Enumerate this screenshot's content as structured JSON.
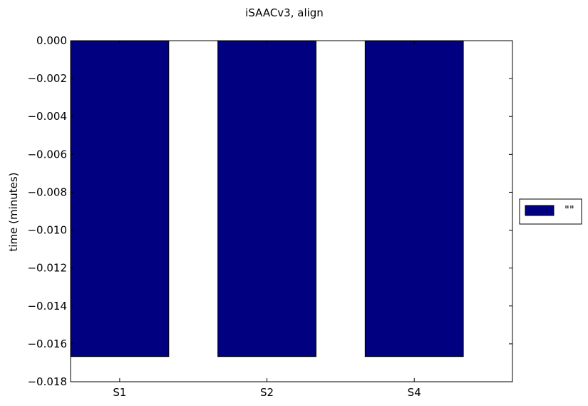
{
  "chart_data": {
    "type": "bar",
    "title": "iSAACv3, align",
    "xlabel": "",
    "ylabel": "time (minutes)",
    "categories": [
      "S1",
      "S2",
      "S4"
    ],
    "series": [
      {
        "name": "\"\"",
        "values": [
          -0.01667,
          -0.01667,
          -0.01667
        ],
        "color": "#000080"
      }
    ],
    "ylim": [
      -0.018,
      0.0
    ],
    "yticks": [
      "0.000",
      "−0.002",
      "−0.004",
      "−0.006",
      "−0.008",
      "−0.010",
      "−0.012",
      "−0.014",
      "−0.016",
      "−0.018"
    ],
    "ytick_values": [
      0.0,
      -0.002,
      -0.004,
      -0.006,
      -0.008,
      -0.01,
      -0.012,
      -0.014,
      -0.016,
      -0.018
    ],
    "grid": false,
    "legend": {
      "placement": "outside-right",
      "entries": [
        "\"\""
      ]
    }
  }
}
